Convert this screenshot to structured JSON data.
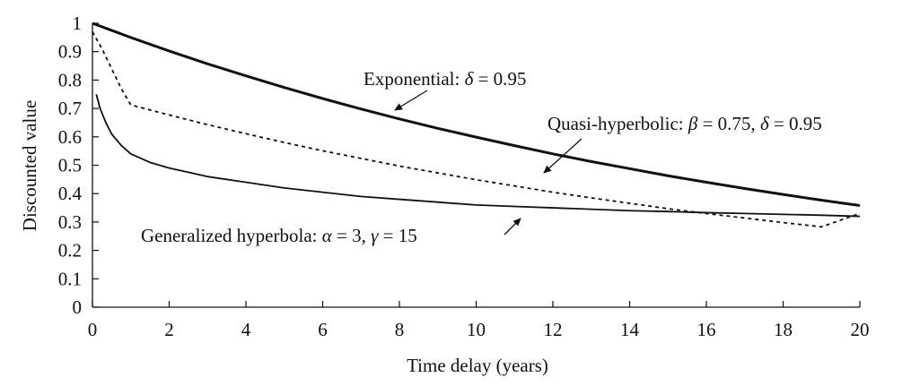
{
  "chart_data": {
    "type": "line",
    "title": "",
    "xlabel": "Time delay (years)",
    "ylabel": "Discounted value",
    "xlim": [
      0,
      20
    ],
    "ylim": [
      0,
      1
    ],
    "x_ticks": [
      0,
      2,
      4,
      6,
      8,
      10,
      12,
      14,
      16,
      18,
      20
    ],
    "y_ticks": [
      0,
      0.1,
      0.2,
      0.3,
      0.4,
      0.5,
      0.6,
      0.7,
      0.8,
      0.9,
      1
    ],
    "x_tick_labels": [
      "0",
      "2",
      "4",
      "6",
      "8",
      "10",
      "12",
      "14",
      "16",
      "18",
      "20"
    ],
    "y_tick_labels": [
      "0",
      "0.1",
      "0.2",
      "0.3",
      "0.4",
      "0.5",
      "0.6",
      "0.7",
      "0.8",
      "0.9",
      "1"
    ],
    "grid": false,
    "series": [
      {
        "name": "Exponential: δ = 0.95",
        "style": "thick-solid",
        "color": "#111111",
        "x": [
          0,
          1,
          2,
          3,
          4,
          5,
          6,
          7,
          8,
          9,
          10,
          11,
          12,
          13,
          14,
          15,
          16,
          17,
          18,
          19,
          20
        ],
        "y": [
          1,
          0.95,
          0.9025,
          0.857,
          0.815,
          0.774,
          0.735,
          0.698,
          0.663,
          0.63,
          0.599,
          0.569,
          0.54,
          0.513,
          0.488,
          0.463,
          0.44,
          0.418,
          0.397,
          0.377,
          0.358
        ]
      },
      {
        "name": "Quasi-hyperbolic: β = 0.75, δ = 0.95",
        "style": "dashed",
        "color": "#111111",
        "x": [
          0,
          0.25,
          0.5,
          0.75,
          1,
          2,
          3,
          4,
          5,
          6,
          7,
          8,
          9,
          10,
          11,
          12,
          13,
          14,
          15,
          16,
          17,
          18,
          19,
          20
        ],
        "y": [
          0.97,
          0.91,
          0.84,
          0.77,
          0.7125,
          0.677,
          0.643,
          0.611,
          0.58,
          0.551,
          0.524,
          0.497,
          0.473,
          0.449,
          0.427,
          0.405,
          0.385,
          0.366,
          0.347,
          0.33,
          0.314,
          0.298,
          0.283,
          0.33
        ]
      },
      {
        "name": "Generalized hyperbola: α = 3, γ = 15",
        "style": "thin-solid",
        "color": "#111111",
        "x": [
          0.1,
          0.2,
          0.35,
          0.5,
          0.75,
          1,
          1.5,
          2,
          3,
          4,
          5,
          6,
          7,
          8,
          9,
          10,
          11,
          12,
          13,
          14,
          15,
          16,
          17,
          18,
          19,
          20
        ],
        "y": [
          0.75,
          0.7,
          0.65,
          0.61,
          0.57,
          0.54,
          0.51,
          0.49,
          0.46,
          0.44,
          0.42,
          0.405,
          0.39,
          0.38,
          0.37,
          0.36,
          0.355,
          0.35,
          0.345,
          0.34,
          0.337,
          0.333,
          0.33,
          0.327,
          0.324,
          0.32
        ]
      }
    ],
    "annotations": [
      {
        "id": "exp",
        "text_prefix": "Exponential: ",
        "text_suffix": " = 0.95",
        "symbol": "δ",
        "arrow_to": [
          8,
          0.72
        ]
      },
      {
        "id": "quasi",
        "text_prefix": "Quasi-hyperbolic: ",
        "symbol": "β",
        "text_middle": " = 0.75, ",
        "symbol2": "δ",
        "text_suffix": " = 0.95",
        "arrow_to": [
          11.8,
          0.47
        ]
      },
      {
        "id": "gen",
        "text_prefix": "Generalized hyperbola: ",
        "symbol": "α",
        "text_middle": " = 3, ",
        "symbol2": "γ",
        "text_suffix": " = 15",
        "arrow_to": [
          11,
          0.34
        ]
      }
    ]
  }
}
